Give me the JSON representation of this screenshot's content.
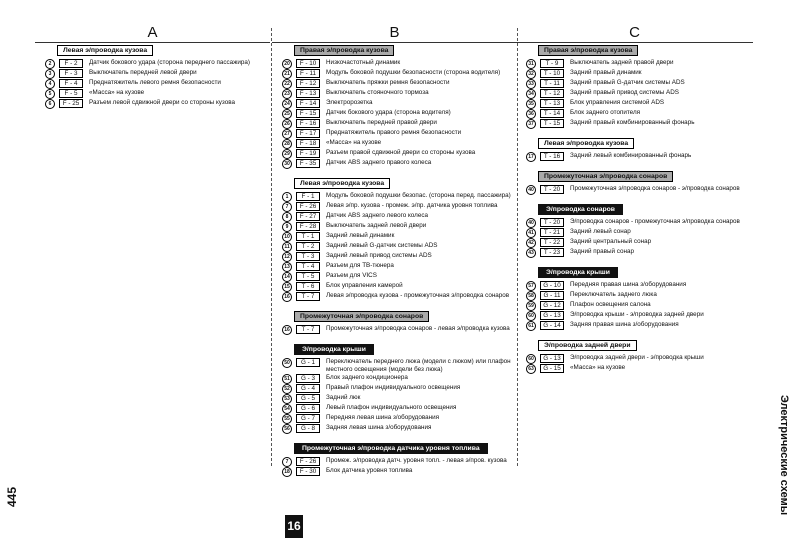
{
  "page_number": "445",
  "side_title": "Электрические схемы",
  "tab": "16",
  "columns": [
    {
      "letter": "A",
      "sections": [
        {
          "title": "Левая э/проводка кузова",
          "style": "boxed",
          "rows": [
            {
              "num": "2",
              "code": "F - 2",
              "text": "Датчик бокового удара (сторона переднего пассажира)"
            },
            {
              "num": "3",
              "code": "F - 3",
              "text": "Выключатель передней левой двери"
            },
            {
              "num": "4",
              "code": "F - 4",
              "text": "Преднатяжитель левого ремня безопасности"
            },
            {
              "num": "5",
              "code": "F - 5",
              "text": "«Масса» на кузове"
            },
            {
              "num": "6",
              "code": "F - 25",
              "text": "Разъем левой сдвижной двери со стороны кузова"
            }
          ]
        }
      ]
    },
    {
      "letter": "B",
      "sections": [
        {
          "title": "Правая э/проводка кузова",
          "style": "gray",
          "rows": [
            {
              "num": "20",
              "code": "F - 10",
              "text": "Низкочастотный динамик"
            },
            {
              "num": "21",
              "code": "F - 11",
              "text": "Модуль боковой подушки безопасности (сторона водителя)"
            },
            {
              "num": "22",
              "code": "F - 12",
              "text": "Выключатель пряжки ремня безопасности"
            },
            {
              "num": "23",
              "code": "F - 13",
              "text": "Выключатель стояночного тормоза"
            },
            {
              "num": "24",
              "code": "F - 14",
              "text": "Электророзетка"
            },
            {
              "num": "25",
              "code": "F - 15",
              "text": "Датчик бокового удара (сторона водителя)"
            },
            {
              "num": "26",
              "code": "F - 16",
              "text": "Выключатель передней правой двери"
            },
            {
              "num": "27",
              "code": "F - 17",
              "text": "Преднатяжитель правого ремня безопасности"
            },
            {
              "num": "28",
              "code": "F - 18",
              "text": "«Масса» на кузове"
            },
            {
              "num": "29",
              "code": "F - 19",
              "text": "Разъем правой сдвижной двери со стороны кузова"
            },
            {
              "num": "30",
              "code": "F - 35",
              "text": "Датчик ABS заднего правого колеса"
            }
          ]
        },
        {
          "title": "Левая э/проводка кузова",
          "style": "boxed",
          "rows": [
            {
              "num": "1",
              "code": "F - 1",
              "text": "Модуль боковой подушки безопас. (сторона перед. пассажира)"
            },
            {
              "num": "7",
              "code": "F - 26",
              "text": "Левая э/пр. кузова - промеж. э/пр. датчика уровня топлива"
            },
            {
              "num": "8",
              "code": "F - 27",
              "text": "Датчик ABS заднего левого колеса"
            },
            {
              "num": "9",
              "code": "F - 28",
              "text": "Выключатель задней левой двери"
            },
            {
              "num": "10",
              "code": "T - 1",
              "text": "Задний левый динамик"
            },
            {
              "num": "11",
              "code": "T - 2",
              "text": "Задний левый G-датчик системы ADS"
            },
            {
              "num": "12",
              "code": "T - 3",
              "text": "Задний левый привод системы ADS"
            },
            {
              "num": "13",
              "code": "T - 4",
              "text": "Разъем для ТВ-тюнера"
            },
            {
              "num": "14",
              "code": "T - 5",
              "text": "Разъем для VICS"
            },
            {
              "num": "15",
              "code": "T - 6",
              "text": "Блок управления камерой"
            },
            {
              "num": "16",
              "code": "T - 7",
              "text": "Левая э/проводка кузова - промежуточная э/проводка сонаров"
            }
          ]
        },
        {
          "title": "Промежуточная э/проводка сонаров",
          "style": "gray",
          "rows": [
            {
              "num": "16",
              "code": "T - 7",
              "text": "Промежуточная э/проводка сонаров - левая э/проводка кузова"
            }
          ]
        },
        {
          "title": "Э/проводка крыши",
          "style": "black",
          "rows": [
            {
              "num": "50",
              "code": "G - 1",
              "text": "Переключатель переднего люка (модели с люком) или плафон местного освещения (модели без люка)"
            },
            {
              "num": "51",
              "code": "G - 3",
              "text": "Блок заднего кондиционера"
            },
            {
              "num": "52",
              "code": "G - 4",
              "text": "Правый плафон индивидуального освещения"
            },
            {
              "num": "53",
              "code": "G - 5",
              "text": "Задний люк"
            },
            {
              "num": "54",
              "code": "G - 6",
              "text": "Левый плафон индивидуального освещения"
            },
            {
              "num": "55",
              "code": "G - 7",
              "text": "Передняя левая шина з/оборудования"
            },
            {
              "num": "56",
              "code": "G - 8",
              "text": "Задняя левая шина з/оборудования"
            }
          ]
        },
        {
          "title": "Промежуточная э/проводка датчика уровня топлива",
          "style": "black",
          "rows": [
            {
              "num": "7",
              "code": "F - 26",
              "text": "Промеж. э/проводка датч. уровня топл. - левая э/пров. кузова"
            },
            {
              "num": "18",
              "code": "F - 30",
              "text": "Блок датчика уровня топлива"
            }
          ]
        }
      ]
    },
    {
      "letter": "C",
      "sections": [
        {
          "title": "Правая э/проводка кузова",
          "style": "gray",
          "rows": [
            {
              "num": "31",
              "code": "T - 9",
              "text": "Выключатель задней правой двери"
            },
            {
              "num": "32",
              "code": "T - 10",
              "text": "Задний правый динамик"
            },
            {
              "num": "33",
              "code": "T - 11",
              "text": "Задний правый G-датчик системы ADS"
            },
            {
              "num": "34",
              "code": "T - 12",
              "text": "Задний правый привод системы ADS"
            },
            {
              "num": "35",
              "code": "T - 13",
              "text": "Блок управления системой ADS"
            },
            {
              "num": "36",
              "code": "T - 14",
              "text": "Блок заднего отопителя"
            },
            {
              "num": "37",
              "code": "T - 15",
              "text": "Задний правый комбинированный фонарь"
            }
          ]
        },
        {
          "title": "Левая э/проводка кузова",
          "style": "boxed",
          "rows": [
            {
              "num": "17",
              "code": "T - 16",
              "text": "Задний левый комбинированный фонарь"
            }
          ]
        },
        {
          "title": "Промежуточная э/проводка сонаров",
          "style": "gray",
          "rows": [
            {
              "num": "40",
              "code": "T - 20",
              "text": "Промежуточная э/проводка сонаров - э/проводка сонаров"
            }
          ]
        },
        {
          "title": "Э/проводка сонаров",
          "style": "black",
          "rows": [
            {
              "num": "40",
              "code": "T - 20",
              "text": "Э/проводка сонаров - промежуточная э/проводка сонаров"
            },
            {
              "num": "41",
              "code": "T - 21",
              "text": "Задний левый сонар"
            },
            {
              "num": "42",
              "code": "T - 22",
              "text": "Задний центральный сонар"
            },
            {
              "num": "43",
              "code": "T - 23",
              "text": "Задний правый сонар"
            }
          ]
        },
        {
          "title": "Э/проводка крыши",
          "style": "black",
          "rows": [
            {
              "num": "57",
              "code": "G - 10",
              "text": "Передняя правая шина з/оборудования"
            },
            {
              "num": "58",
              "code": "G - 11",
              "text": "Переключатель заднего люка"
            },
            {
              "num": "59",
              "code": "G - 12",
              "text": "Плафон освещения салона"
            },
            {
              "num": "60",
              "code": "G - 13",
              "text": "Э/проводка крыши - э/проводка задней двери"
            },
            {
              "num": "61",
              "code": "G - 14",
              "text": "Задняя правая шина з/оборудования"
            }
          ]
        },
        {
          "title": "Э/проводка задней двери",
          "style": "boxed",
          "rows": [
            {
              "num": "60",
              "code": "G - 13",
              "text": "Э/проводка задней двери - э/проводка крыши"
            },
            {
              "num": "63",
              "code": "G - 15",
              "text": "«Масса» на кузове"
            }
          ]
        }
      ]
    }
  ]
}
